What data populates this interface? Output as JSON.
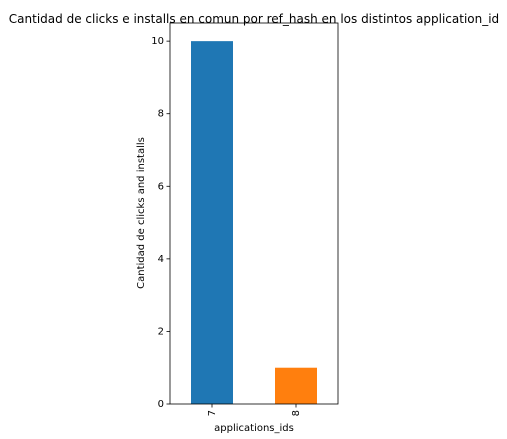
{
  "chart_data": {
    "type": "bar",
    "title": "Cantidad de clicks e installs en comun por ref_hash en los distintos application_id",
    "xlabel": "applications_ids",
    "ylabel": "Cantidad de clicks and installs",
    "categories": [
      "7",
      "8"
    ],
    "values": [
      10,
      1
    ],
    "colors": [
      "#1f77b4",
      "#ff7f0e"
    ],
    "ylim": [
      0,
      10.5
    ],
    "yticks": [
      0,
      2,
      4,
      6,
      8,
      10
    ],
    "ytick_labels": [
      "0",
      "2",
      "4",
      "6",
      "8",
      "10"
    ],
    "grid": false,
    "legend": "none"
  }
}
